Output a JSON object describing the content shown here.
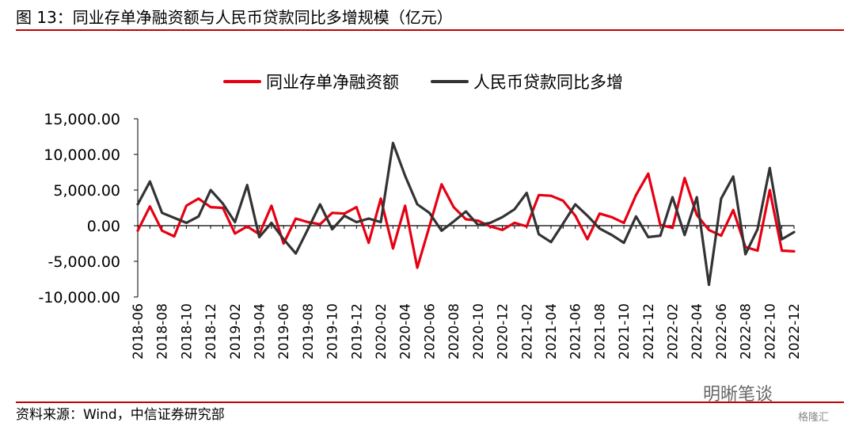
{
  "header": {
    "title": "图 13：同业存单净融资额与人民币贷款同比多增规模（亿元）"
  },
  "footer": {
    "source": "资料来源：Wind，中信证券研究部"
  },
  "watermark": {
    "text1": "明晰笔谈",
    "text2": "格隆汇"
  },
  "colors": {
    "accent": "#c00000",
    "series1": "#e60012",
    "series2": "#333333"
  },
  "chart_data": {
    "type": "line",
    "title": "",
    "xlabel": "",
    "ylabel": "",
    "ylim": [
      -10000,
      15000
    ],
    "yticks": [
      "15,000.00",
      "10,000.00",
      "5,000.00",
      "0.00",
      "-5,000.00",
      "-10,000.00"
    ],
    "ytick_values": [
      15000,
      10000,
      5000,
      0,
      -5000,
      -10000
    ],
    "grid": false,
    "legend": "top-center",
    "x": [
      "2018-06",
      "2018-07",
      "2018-08",
      "2018-09",
      "2018-10",
      "2018-11",
      "2018-12",
      "2019-01",
      "2019-02",
      "2019-03",
      "2019-04",
      "2019-05",
      "2019-06",
      "2019-07",
      "2019-08",
      "2019-09",
      "2019-10",
      "2019-11",
      "2019-12",
      "2020-01",
      "2020-02",
      "2020-03",
      "2020-04",
      "2020-05",
      "2020-06",
      "2020-07",
      "2020-08",
      "2020-09",
      "2020-10",
      "2020-11",
      "2020-12",
      "2021-01",
      "2021-02",
      "2021-03",
      "2021-04",
      "2021-05",
      "2021-06",
      "2021-07",
      "2021-08",
      "2021-09",
      "2021-10",
      "2021-11",
      "2021-12",
      "2022-01",
      "2022-02",
      "2022-03",
      "2022-04",
      "2022-05",
      "2022-06",
      "2022-07",
      "2022-08",
      "2022-09",
      "2022-10",
      "2022-11",
      "2022-12"
    ],
    "xtick_labels": [
      "2018-06",
      "2018-08",
      "2018-10",
      "2018-12",
      "2019-02",
      "2019-04",
      "2019-06",
      "2019-08",
      "2019-10",
      "2019-12",
      "2020-02",
      "2020-04",
      "2020-06",
      "2020-08",
      "2020-10",
      "2020-12",
      "2021-02",
      "2021-04",
      "2021-06",
      "2021-08",
      "2021-10",
      "2021-12",
      "2022-02",
      "2022-04",
      "2022-06",
      "2022-08",
      "2022-10",
      "2022-12"
    ],
    "series": [
      {
        "name": "同业存单净融资额",
        "color": "#e60012",
        "values": [
          -700,
          2700,
          -700,
          -1500,
          2800,
          3800,
          2600,
          2500,
          -1100,
          -100,
          -1200,
          2800,
          -2500,
          1000,
          500,
          200,
          1800,
          1700,
          2600,
          -2400,
          3800,
          -3200,
          2800,
          -5900,
          -100,
          5800,
          2600,
          900,
          700,
          -100,
          -600,
          400,
          -100,
          4300,
          4200,
          3500,
          1400,
          -1900,
          1700,
          1200,
          400,
          4300,
          7300,
          100,
          -300,
          6700,
          1500,
          -600,
          -1400,
          2200,
          -3000,
          -3500,
          5000,
          -3500,
          -3600
        ]
      },
      {
        "name": "人民币贷款同比多增",
        "color": "#333333",
        "values": [
          3000,
          6200,
          1800,
          1100,
          400,
          1300,
          5000,
          3100,
          500,
          5700,
          -1600,
          400,
          -1900,
          -3900,
          -500,
          3000,
          -500,
          1400,
          500,
          1000,
          500,
          11600,
          7000,
          3000,
          1800,
          -700,
          600,
          2000,
          100,
          400,
          1200,
          2300,
          4600,
          -1200,
          -2300,
          300,
          3000,
          1400,
          -400,
          -1300,
          -2400,
          1300,
          -1600,
          -1400,
          4000,
          -1300,
          4000,
          -8300,
          3800,
          6900,
          -4000,
          -500,
          8100,
          -1900,
          -900
        ]
      }
    ],
    "x_series_note": ""
  }
}
